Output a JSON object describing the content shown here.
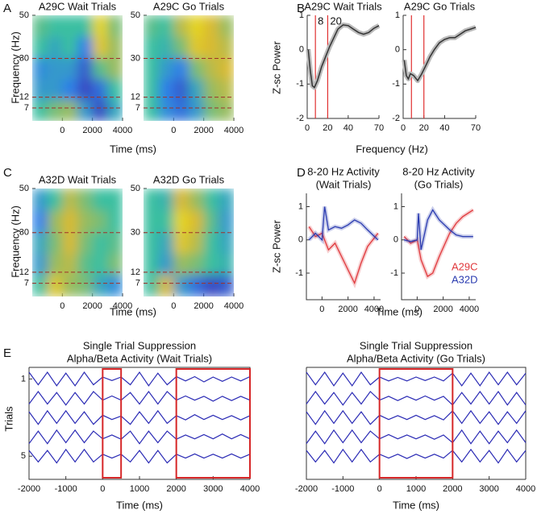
{
  "chart_data": [
    {
      "panel": "A",
      "type": "heatmap",
      "ylabel": "Frequency (Hz)",
      "xlabel": "Time (ms)",
      "xlim": [
        -2000,
        4000
      ],
      "xticks": [
        0,
        2000,
        4000
      ],
      "ylim": [
        1,
        50
      ],
      "yticks": [
        7,
        12,
        30,
        50
      ],
      "hlines": [
        7,
        12,
        30
      ],
      "hline_color": "#a0302a",
      "clim": [
        -1,
        1
      ],
      "colormap": [
        "#3e26a8",
        "#2f80e8",
        "#3bbfa0",
        "#d8ba32",
        "#f9fb0e"
      ],
      "subplots": [
        {
          "title": "A29C Wait Trials",
          "z": [
            [
              0,
              0.2,
              0.3,
              -0.3,
              -0.8,
              -0.2
            ],
            [
              -0.3,
              -0.3,
              -0.5,
              -0.8,
              -0.6,
              0
            ],
            [
              -0.4,
              -0.3,
              -0.3,
              -0.7,
              0.1,
              0.3
            ],
            [
              0,
              -0.2,
              0,
              -0.5,
              0.6,
              0.3
            ],
            [
              0.1,
              0,
              0,
              0,
              0.7,
              0.2
            ]
          ]
        },
        {
          "title": "A29C Go Trials",
          "z": [
            [
              0,
              -0.4,
              -0.6,
              -0.3,
              0.2,
              0.3
            ],
            [
              0,
              -0.5,
              -0.7,
              -0.2,
              0.3,
              0.4
            ],
            [
              0,
              -0.3,
              -0.5,
              0.2,
              0.4,
              0.5
            ],
            [
              0,
              -0.1,
              0.2,
              0.6,
              0.5,
              0.4
            ],
            [
              0.1,
              0,
              0.4,
              0.7,
              0.5,
              0.3
            ]
          ]
        }
      ]
    },
    {
      "panel": "B",
      "type": "line",
      "ylabel": "Z-sc Power",
      "xlabel": "Frequency (Hz)",
      "xlim": [
        0,
        70
      ],
      "xticks": [
        0,
        20,
        40,
        70
      ],
      "ylim": [
        -2,
        1
      ],
      "yticks": [
        -2,
        -1,
        0,
        1
      ],
      "color": "#333333",
      "vline_color": "#e03030",
      "subplots": [
        {
          "title": "A29C Wait Trials",
          "vlines": [
            8,
            20
          ],
          "vline_labels": true,
          "x": [
            1,
            3,
            5,
            7,
            10,
            14,
            18,
            22,
            26,
            30,
            35,
            40,
            45,
            50,
            55,
            60,
            65,
            70
          ],
          "values": [
            0,
            -0.6,
            -1.05,
            -1.1,
            -0.9,
            -0.5,
            -0.2,
            0.1,
            0.35,
            0.6,
            0.72,
            0.7,
            0.6,
            0.5,
            0.45,
            0.5,
            0.62,
            0.7
          ]
        },
        {
          "title": "A29C Go Trials",
          "vlines": [
            8,
            20
          ],
          "vline_labels": false,
          "x": [
            1,
            3,
            5,
            7,
            10,
            14,
            18,
            22,
            26,
            30,
            35,
            40,
            45,
            50,
            55,
            60,
            65,
            70
          ],
          "values": [
            -0.3,
            -0.75,
            -0.85,
            -0.7,
            -0.75,
            -0.9,
            -0.7,
            -0.45,
            -0.2,
            0,
            0.2,
            0.3,
            0.35,
            0.35,
            0.45,
            0.55,
            0.6,
            0.65
          ]
        }
      ]
    },
    {
      "panel": "C",
      "type": "heatmap",
      "ylabel": "Frequency (Hz)",
      "xlabel": "Time (ms)",
      "xlim": [
        -2000,
        4000
      ],
      "xticks": [
        0,
        2000,
        4000
      ],
      "ylim": [
        1,
        50
      ],
      "yticks": [
        7,
        12,
        30,
        50
      ],
      "hlines": [
        7,
        12,
        30
      ],
      "hline_color": "#a0302a",
      "clim": [
        -1,
        1
      ],
      "colormap": [
        "#3e26a8",
        "#2f80e8",
        "#3bbfa0",
        "#d8ba32",
        "#f9fb0e"
      ],
      "subplots": [
        {
          "title": "A32D Wait Trials",
          "z": [
            [
              0,
              0.6,
              0.3,
              0.2,
              -0.2,
              -0.4
            ],
            [
              -0.3,
              0.3,
              0.4,
              0.1,
              0,
              0.2
            ],
            [
              -0.2,
              0.2,
              0.5,
              0.2,
              0,
              0.1
            ],
            [
              -0.5,
              0.3,
              0.5,
              0.3,
              0.2,
              0
            ],
            [
              -0.3,
              0,
              0.4,
              0.2,
              0,
              0
            ]
          ]
        },
        {
          "title": "A32D Go Trials",
          "z": [
            [
              0,
              0.5,
              -0.3,
              -0.6,
              -0.8,
              -0.7
            ],
            [
              0,
              -0.3,
              0.3,
              0.2,
              0,
              -0.1
            ],
            [
              0,
              -0.2,
              0.6,
              0.4,
              0,
              -0.2
            ],
            [
              0,
              0,
              0.7,
              0.5,
              0.1,
              -0.3
            ],
            [
              0,
              -0.1,
              0.5,
              0.3,
              0,
              -0.2
            ]
          ]
        }
      ]
    },
    {
      "panel": "D",
      "type": "multiline",
      "ylabel": "Z-sc Power",
      "xlabel": "Time (ms)",
      "xlim": [
        -1200,
        4500
      ],
      "xticks": [
        0,
        2000,
        4000
      ],
      "ylim": [
        -1.8,
        1.4
      ],
      "yticks": [
        -1,
        0,
        1
      ],
      "legend": "lower right",
      "series": [
        {
          "name": "A29C",
          "color": "#e0383c"
        },
        {
          "name": "A32D",
          "color": "#2a3bb0"
        }
      ],
      "subplots": [
        {
          "title": [
            "8-20 Hz Activity",
            "(Wait Trials)"
          ],
          "x": [
            -1000,
            -500,
            0,
            200,
            500,
            1000,
            1500,
            2000,
            2500,
            3000,
            3500,
            4300
          ],
          "values": [
            [
              0.4,
              0.1,
              0.2,
              0,
              -0.3,
              -0.1,
              -0.5,
              -0.9,
              -1.3,
              -0.7,
              -0.2,
              0.2
            ],
            [
              0,
              0.2,
              0,
              1.0,
              0.3,
              0.4,
              0.35,
              0.45,
              0.6,
              0.5,
              0.3,
              0
            ]
          ]
        },
        {
          "title": [
            "8-20 Hz Activity",
            "(Go Trials)"
          ],
          "x": [
            -1000,
            -500,
            0,
            100,
            300,
            800,
            1200,
            1700,
            2500,
            3000,
            3500,
            4300
          ],
          "values": [
            [
              0.1,
              -0.1,
              0,
              -0.2,
              -0.6,
              -1.1,
              -1.0,
              -0.5,
              0.2,
              0.5,
              0.7,
              0.9
            ],
            [
              0,
              -0.05,
              0,
              0.8,
              -0.3,
              0.6,
              0.9,
              0.6,
              0.3,
              0.15,
              0.1,
              0.1
            ]
          ]
        }
      ]
    },
    {
      "panel": "E",
      "type": "trace",
      "ylabel": "Trials",
      "xlabel": "Time (ms)",
      "xlim": [
        -2000,
        4000
      ],
      "xticks": [
        -2000,
        -1000,
        0,
        1000,
        2000,
        3000,
        4000
      ],
      "ylim": [
        0.4,
        6.2
      ],
      "y_inverted": true,
      "yticks": [
        1,
        5
      ],
      "color": "#2b2bb5",
      "window_color": "#d62728",
      "x": [
        -2000,
        -1750,
        -1500,
        -1250,
        -1000,
        -750,
        -500,
        -250,
        0,
        250,
        500,
        750,
        1000,
        1250,
        1500,
        1750,
        2000,
        2250,
        2500,
        2750,
        3000,
        3250,
        3500,
        3750,
        4000
      ],
      "subplots": [
        {
          "title": [
            "Single Trial Suppression",
            "Alpha/Beta Activity (Wait Trials)"
          ],
          "windows": [
            [
              0,
              500
            ],
            [
              2000,
              4000
            ]
          ],
          "trials": [
            [
              0.35,
              -0.3,
              0.35,
              -0.35,
              0.3,
              -0.35,
              0.35,
              -0.3,
              0.1,
              -0.08,
              0.1,
              -0.3,
              0.35,
              -0.35,
              0.3,
              -0.3,
              0.12,
              -0.1,
              0.12,
              -0.15,
              0.1,
              -0.12,
              0.1,
              -0.1,
              0.12
            ],
            [
              -0.3,
              0.35,
              -0.3,
              0.3,
              -0.35,
              0.3,
              -0.3,
              0.35,
              -0.1,
              0.12,
              -0.1,
              0.3,
              -0.3,
              0.35,
              -0.3,
              0.35,
              -0.1,
              0.12,
              -0.1,
              0.1,
              -0.15,
              0.1,
              -0.12,
              0.1,
              -0.1
            ],
            [
              0.3,
              -0.35,
              0.35,
              -0.3,
              0.35,
              -0.3,
              0.3,
              -0.35,
              0.12,
              -0.1,
              0.08,
              -0.35,
              0.3,
              -0.3,
              0.35,
              -0.3,
              0.1,
              -0.12,
              0.15,
              -0.1,
              0.12,
              -0.1,
              0.1,
              -0.12,
              0.1
            ],
            [
              -0.35,
              0.3,
              -0.35,
              0.35,
              -0.3,
              0.35,
              -0.3,
              0.3,
              -0.1,
              0.1,
              -0.12,
              0.3,
              -0.35,
              0.3,
              -0.3,
              0.3,
              -0.12,
              0.1,
              -0.1,
              0.12,
              -0.1,
              0.15,
              -0.1,
              0.12,
              -0.1
            ],
            [
              0.3,
              -0.3,
              0.3,
              -0.35,
              0.35,
              -0.3,
              0.35,
              -0.3,
              0.1,
              -0.1,
              0.1,
              -0.3,
              0.3,
              -0.35,
              0.3,
              -0.35,
              0.1,
              -0.1,
              0.12,
              -0.1,
              0.1,
              -0.1,
              0.12,
              -0.1,
              0.1
            ]
          ]
        },
        {
          "title": [
            "Single Trial Suppression",
            "Alpha/Beta Activity (Go Trials)"
          ],
          "windows": [
            [
              0,
              2000
            ]
          ],
          "trials": [
            [
              0.35,
              -0.3,
              0.35,
              -0.35,
              0.3,
              -0.35,
              0.35,
              -0.3,
              0.1,
              -0.1,
              0.08,
              -0.1,
              0.1,
              -0.08,
              0.1,
              -0.1,
              0.3,
              -0.35,
              0.3,
              -0.35,
              0.35,
              -0.3,
              0.35,
              -0.3,
              0.3
            ],
            [
              -0.3,
              0.35,
              -0.3,
              0.3,
              -0.35,
              0.3,
              -0.3,
              0.35,
              -0.1,
              0.1,
              -0.12,
              0.1,
              -0.1,
              0.12,
              -0.1,
              0.1,
              -0.35,
              0.3,
              -0.3,
              0.35,
              -0.3,
              0.35,
              -0.35,
              0.3,
              -0.35
            ],
            [
              0.3,
              -0.35,
              0.35,
              -0.3,
              0.35,
              -0.3,
              0.3,
              -0.35,
              0.12,
              -0.1,
              0.1,
              -0.1,
              0.12,
              -0.1,
              0.1,
              -0.12,
              0.35,
              -0.3,
              0.35,
              -0.3,
              0.3,
              -0.35,
              0.3,
              -0.3,
              0.35
            ],
            [
              -0.35,
              0.3,
              -0.35,
              0.35,
              -0.3,
              0.35,
              -0.3,
              0.3,
              -0.1,
              0.12,
              -0.1,
              0.1,
              -0.1,
              0.1,
              -0.12,
              0.1,
              -0.3,
              0.35,
              -0.35,
              0.3,
              -0.35,
              0.3,
              -0.3,
              0.35,
              -0.3
            ],
            [
              0.3,
              -0.3,
              0.3,
              -0.35,
              0.35,
              -0.3,
              0.35,
              -0.3,
              0.1,
              -0.1,
              0.1,
              -0.12,
              0.1,
              -0.1,
              0.1,
              -0.1,
              0.3,
              -0.3,
              0.35,
              -0.3,
              0.3,
              -0.35,
              0.35,
              -0.3,
              0.3
            ]
          ]
        }
      ]
    }
  ]
}
